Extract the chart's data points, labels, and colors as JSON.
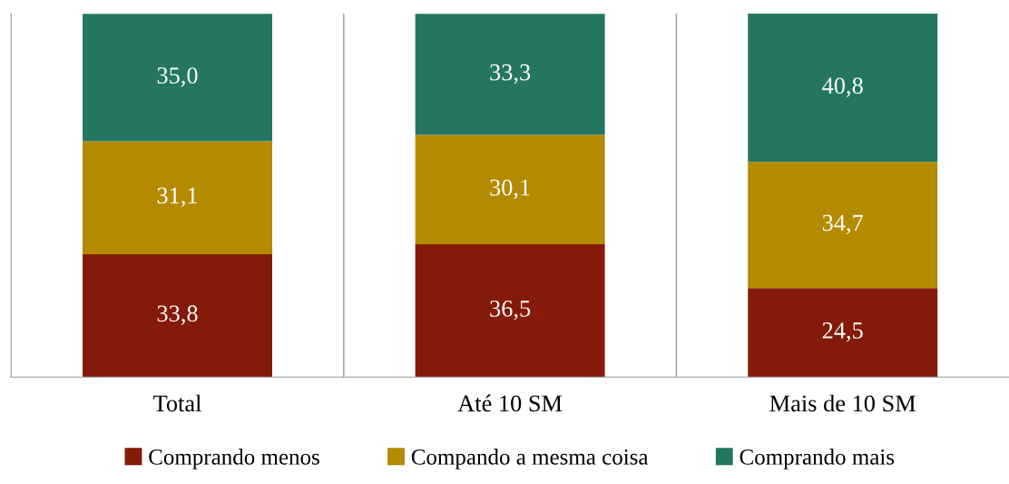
{
  "chart_data": {
    "type": "bar",
    "stacked": true,
    "grid": "x",
    "legend": "bottom",
    "categories": [
      "Total",
      "Até 10 SM",
      "Mais de 10 SM"
    ],
    "series": [
      {
        "name": "Comprando menos",
        "color": "#841a09",
        "values": [
          33.8,
          36.5,
          24.5
        ],
        "value_labels": [
          "33,8",
          "36,5",
          "24,5"
        ]
      },
      {
        "name": "Compando a mesma coisa",
        "color": "#b38a00",
        "values": [
          31.1,
          30.1,
          34.7
        ],
        "value_labels": [
          "31,1",
          "30,1",
          "34,7"
        ]
      },
      {
        "name": "Comprando mais",
        "color": "#247660",
        "values": [
          35.0,
          33.3,
          40.8
        ],
        "value_labels": [
          "35,0",
          "33,3",
          "40,8"
        ]
      }
    ]
  }
}
